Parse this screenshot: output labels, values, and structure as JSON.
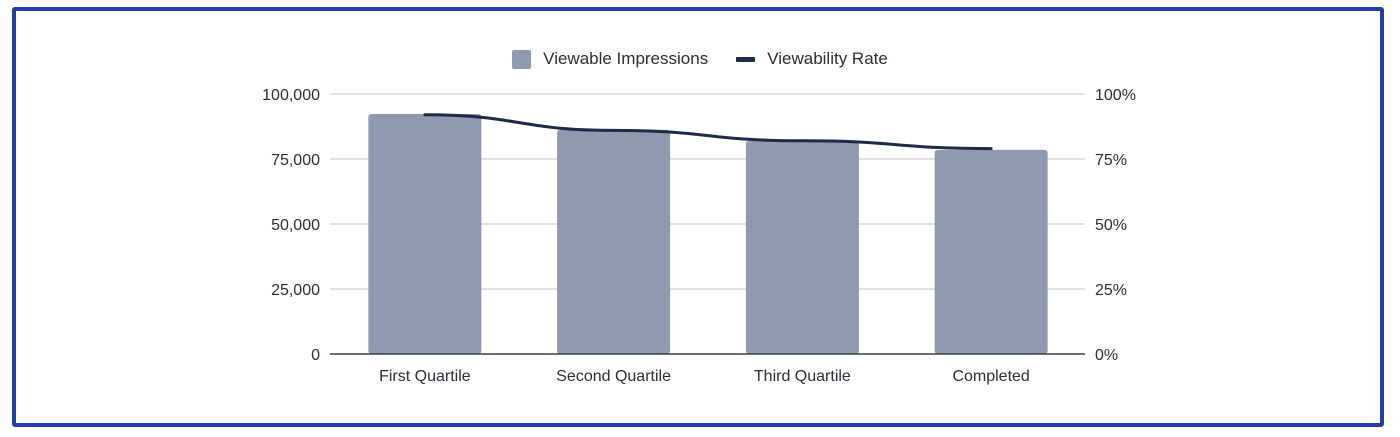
{
  "chart_data": {
    "type": "bar",
    "title": "",
    "categories": [
      "First Quartile",
      "Second Quartile",
      "Third Quartile",
      "Completed"
    ],
    "series": [
      {
        "name": "Viewable Impressions",
        "type": "bar",
        "axis": "left",
        "color": "#8f9aae",
        "values": [
          92300,
          86200,
          82000,
          78500
        ]
      },
      {
        "name": "Viewability Rate",
        "type": "line",
        "axis": "right",
        "color": "#1e2a47",
        "values": [
          0.92,
          0.86,
          0.82,
          0.79
        ]
      }
    ],
    "xlabel": "",
    "ylabel": "",
    "y_left": {
      "ticks": [
        "0",
        "25,000",
        "50,000",
        "75,000",
        "100,000"
      ],
      "ylim": [
        0,
        100000
      ]
    },
    "y_right": {
      "ticks": [
        "0%",
        "25%",
        "50%",
        "75%",
        "100%"
      ],
      "ylim": [
        0,
        1
      ]
    },
    "grid": true,
    "legend_position": "top"
  },
  "legend": {
    "items": [
      {
        "label": "Viewable Impressions"
      },
      {
        "label": "Viewability Rate"
      }
    ]
  },
  "colors": {
    "border": "#233ea6",
    "bar": "#8f9aae",
    "line": "#1e2a47",
    "grid": "#d6d8dd"
  }
}
